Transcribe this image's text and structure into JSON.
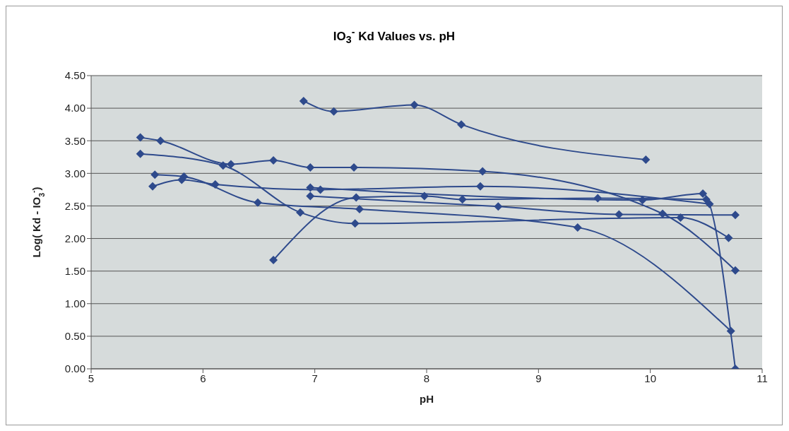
{
  "chart_data": {
    "type": "line",
    "title": "IO$_{3}$$^{-}$ Kd Values vs. pH",
    "xlabel": "pH",
    "ylabel": "Log( Kd - IO$_{3}$$^{-}$)",
    "xlim": [
      5,
      11
    ],
    "xticks": [
      5,
      6,
      7,
      8,
      9,
      10,
      11
    ],
    "ylim": [
      0,
      4.5
    ],
    "yticks": [
      {
        "value": 0,
        "label": "0.00"
      },
      {
        "value": 0.5,
        "label": "0.50"
      },
      {
        "value": 1,
        "label": "1.00"
      },
      {
        "value": 1.5,
        "label": "1.50"
      },
      {
        "value": 2,
        "label": "2.00"
      },
      {
        "value": 2.5,
        "label": "2.50"
      },
      {
        "value": 3,
        "label": "3.00"
      },
      {
        "value": 3.5,
        "label": "3.50"
      },
      {
        "value": 4,
        "label": "4.00"
      },
      {
        "value": 4.5,
        "label": "4.50"
      }
    ],
    "grid": "y",
    "marker": "diamond",
    "line_style": "solid",
    "series": [
      {
        "color": "#2e4a8c",
        "x": [
          6.9,
          7.17,
          7.89,
          8.31,
          9.96
        ],
        "values": [
          4.11,
          3.95,
          4.05,
          3.75,
          3.21
        ]
      },
      {
        "color": "#2e4a8c",
        "x": [
          5.44,
          5.62,
          6.25,
          6.63,
          6.96,
          7.35,
          8.5,
          10.11,
          10.76
        ],
        "values": [
          3.55,
          3.5,
          3.14,
          3.2,
          3.09,
          3.09,
          3.03,
          2.38,
          1.51
        ]
      },
      {
        "color": "#2e4a8c",
        "x": [
          5.44,
          6.18,
          6.87,
          7.36,
          10.27,
          10.7
        ],
        "values": [
          3.3,
          3.12,
          2.4,
          2.23,
          2.32,
          2.01
        ]
      },
      {
        "color": "#2e4a8c",
        "x": [
          5.57,
          5.83,
          6.49,
          7.4,
          9.35,
          10.72
        ],
        "values": [
          2.98,
          2.95,
          2.55,
          2.45,
          2.17,
          0.58
        ]
      },
      {
        "color": "#2e4a8c",
        "x": [
          5.55,
          5.81,
          6.11,
          7.05,
          8.48,
          10.53
        ],
        "values": [
          2.8,
          2.9,
          2.83,
          2.75,
          2.8,
          2.53
        ]
      },
      {
        "color": "#2e4a8c",
        "x": [
          6.63,
          7.37,
          7.98,
          8.32,
          9.53,
          10.5
        ],
        "values": [
          1.67,
          2.63,
          2.65,
          2.6,
          2.62,
          2.6
        ]
      },
      {
        "color": "#2e4a8c",
        "x": [
          6.96,
          8.64,
          9.72,
          10.76
        ],
        "values": [
          2.65,
          2.49,
          2.37,
          2.36
        ]
      },
      {
        "color": "#2e4a8c",
        "x": [
          6.96,
          9.93,
          10.47,
          10.76
        ],
        "values": [
          2.78,
          2.59,
          2.69,
          0.0
        ]
      }
    ]
  }
}
